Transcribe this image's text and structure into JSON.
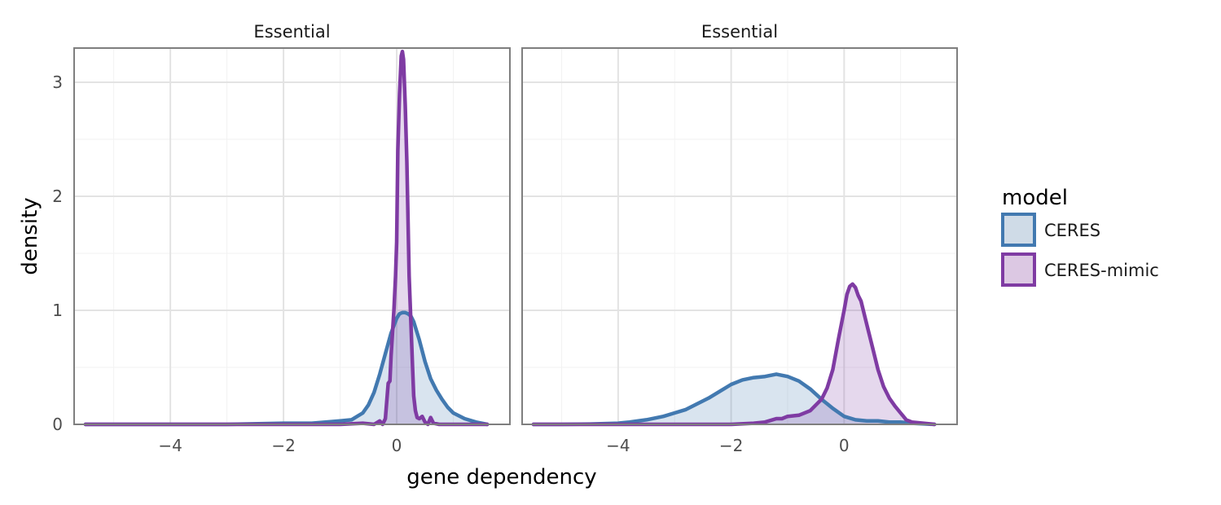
{
  "chart_data": {
    "type": "area",
    "xlabel": "gene dependency",
    "ylabel": "density",
    "xlim": [
      -5.7,
      2.0
    ],
    "ylim": [
      0,
      3.3
    ],
    "x_ticks": [
      -4,
      -2,
      0
    ],
    "x_tick_labels": [
      "−4",
      "−2",
      "0"
    ],
    "y_ticks": [
      0,
      1,
      2,
      3
    ],
    "y_tick_labels": [
      "0",
      "1",
      "2",
      "3"
    ],
    "grid": true,
    "legend": {
      "title": "model",
      "position": "right",
      "entries": [
        {
          "label": "CERES",
          "color": "#4279b0",
          "fill": "#cfdbe7"
        },
        {
          "label": "CERES-mimic",
          "color": "#7f3ba3",
          "fill": "#dcc8e3"
        }
      ]
    },
    "panels": [
      {
        "title": "Essential",
        "series": [
          {
            "name": "CERES",
            "x": [
              -5.5,
              -3.0,
              -2.0,
              -1.5,
              -1.0,
              -0.8,
              -0.6,
              -0.5,
              -0.4,
              -0.3,
              -0.2,
              -0.1,
              0.0,
              0.05,
              0.1,
              0.15,
              0.2,
              0.25,
              0.3,
              0.4,
              0.5,
              0.6,
              0.7,
              0.8,
              0.9,
              1.0,
              1.2,
              1.4,
              1.6
            ],
            "y": [
              0.0,
              0.0,
              0.01,
              0.01,
              0.03,
              0.04,
              0.1,
              0.17,
              0.28,
              0.44,
              0.62,
              0.8,
              0.93,
              0.97,
              0.98,
              0.98,
              0.97,
              0.95,
              0.9,
              0.74,
              0.55,
              0.4,
              0.3,
              0.22,
              0.15,
              0.1,
              0.05,
              0.02,
              0.0
            ]
          },
          {
            "name": "CERES-mimic",
            "x": [
              -5.5,
              -3.0,
              -1.0,
              -0.6,
              -0.4,
              -0.3,
              -0.25,
              -0.2,
              -0.15,
              -0.12,
              -0.1,
              -0.08,
              -0.05,
              -0.02,
              0.0,
              0.02,
              0.05,
              0.08,
              0.1,
              0.12,
              0.15,
              0.18,
              0.2,
              0.22,
              0.25,
              0.28,
              0.3,
              0.33,
              0.36,
              0.4,
              0.45,
              0.5,
              0.55,
              0.6,
              0.65,
              0.75,
              1.6
            ],
            "y": [
              0.0,
              0.0,
              0.0,
              0.01,
              0.0,
              0.03,
              0.0,
              0.05,
              0.36,
              0.38,
              0.6,
              0.76,
              1.0,
              1.3,
              1.6,
              2.4,
              2.9,
              3.23,
              3.27,
              3.2,
              2.8,
              2.3,
              1.8,
              1.3,
              0.9,
              0.5,
              0.25,
              0.12,
              0.06,
              0.05,
              0.07,
              0.02,
              0.0,
              0.06,
              0.01,
              0.0,
              0.0
            ]
          }
        ]
      },
      {
        "title": "Essential",
        "series": [
          {
            "name": "CERES",
            "x": [
              -5.5,
              -5.0,
              -4.5,
              -4.0,
              -3.8,
              -3.5,
              -3.2,
              -3.0,
              -2.8,
              -2.6,
              -2.4,
              -2.2,
              -2.0,
              -1.8,
              -1.6,
              -1.4,
              -1.2,
              -1.0,
              -0.8,
              -0.6,
              -0.4,
              -0.2,
              0.0,
              0.2,
              0.4,
              0.6,
              0.8,
              1.0,
              1.2,
              1.6
            ],
            "y": [
              0.0,
              0.0,
              0.003,
              0.01,
              0.02,
              0.04,
              0.07,
              0.1,
              0.13,
              0.18,
              0.23,
              0.29,
              0.35,
              0.39,
              0.41,
              0.42,
              0.44,
              0.42,
              0.38,
              0.31,
              0.22,
              0.14,
              0.07,
              0.04,
              0.03,
              0.03,
              0.02,
              0.02,
              0.01,
              0.0
            ]
          },
          {
            "name": "CERES-mimic",
            "x": [
              -5.5,
              -2.0,
              -1.6,
              -1.4,
              -1.2,
              -1.1,
              -1.0,
              -0.8,
              -0.6,
              -0.4,
              -0.3,
              -0.2,
              -0.1,
              0.0,
              0.05,
              0.1,
              0.15,
              0.2,
              0.25,
              0.3,
              0.4,
              0.5,
              0.6,
              0.7,
              0.8,
              0.9,
              1.0,
              1.1,
              1.2,
              1.6
            ],
            "y": [
              0.0,
              0.0,
              0.01,
              0.02,
              0.05,
              0.05,
              0.07,
              0.08,
              0.12,
              0.22,
              0.32,
              0.48,
              0.75,
              1.0,
              1.14,
              1.21,
              1.23,
              1.2,
              1.13,
              1.08,
              0.88,
              0.68,
              0.48,
              0.33,
              0.23,
              0.16,
              0.1,
              0.04,
              0.02,
              0.0
            ]
          }
        ]
      }
    ]
  }
}
